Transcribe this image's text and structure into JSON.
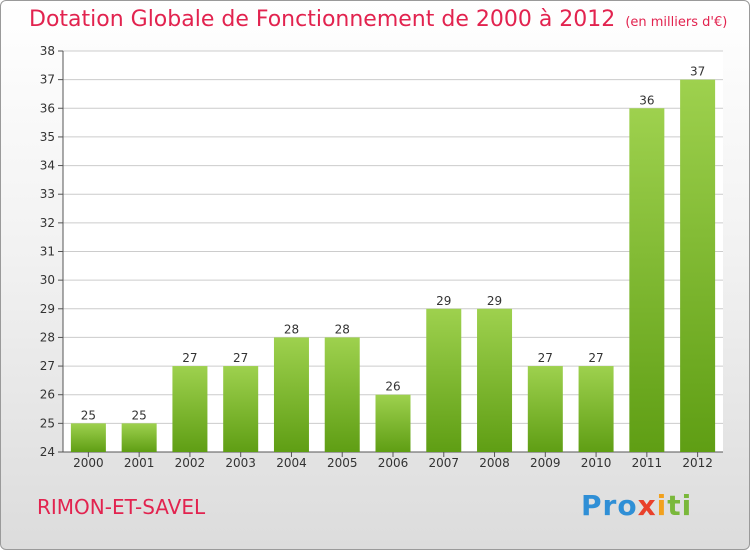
{
  "header": {
    "title": "Dotation Globale de Fonctionnement de 2000 à 2012",
    "unit": "(en milliers d'€)"
  },
  "footer": {
    "commune": "RIMON-ET-SAVEL",
    "logo_parts": [
      "Pro",
      "x",
      "i",
      "ti"
    ]
  },
  "colors": {
    "title": "#e2234f",
    "bar_light": "#9ed14e",
    "bar_dark": "#5f9e14",
    "grid": "#cccccc"
  },
  "chart_data": {
    "type": "bar",
    "title": "Dotation Globale de Fonctionnement de 2000 à 2012",
    "subtitle": "(en milliers d'€)",
    "xlabel": "",
    "ylabel": "",
    "categories": [
      "2000",
      "2001",
      "2002",
      "2003",
      "2004",
      "2005",
      "2006",
      "2007",
      "2008",
      "2009",
      "2010",
      "2011",
      "2012"
    ],
    "values": [
      25,
      25,
      27,
      27,
      28,
      28,
      26,
      29,
      29,
      27,
      27,
      36,
      37
    ],
    "ylim": [
      24,
      38
    ],
    "yticks": [
      24,
      25,
      26,
      27,
      28,
      29,
      30,
      31,
      32,
      33,
      34,
      35,
      36,
      37,
      38
    ],
    "grid": true,
    "data_labels": true
  }
}
